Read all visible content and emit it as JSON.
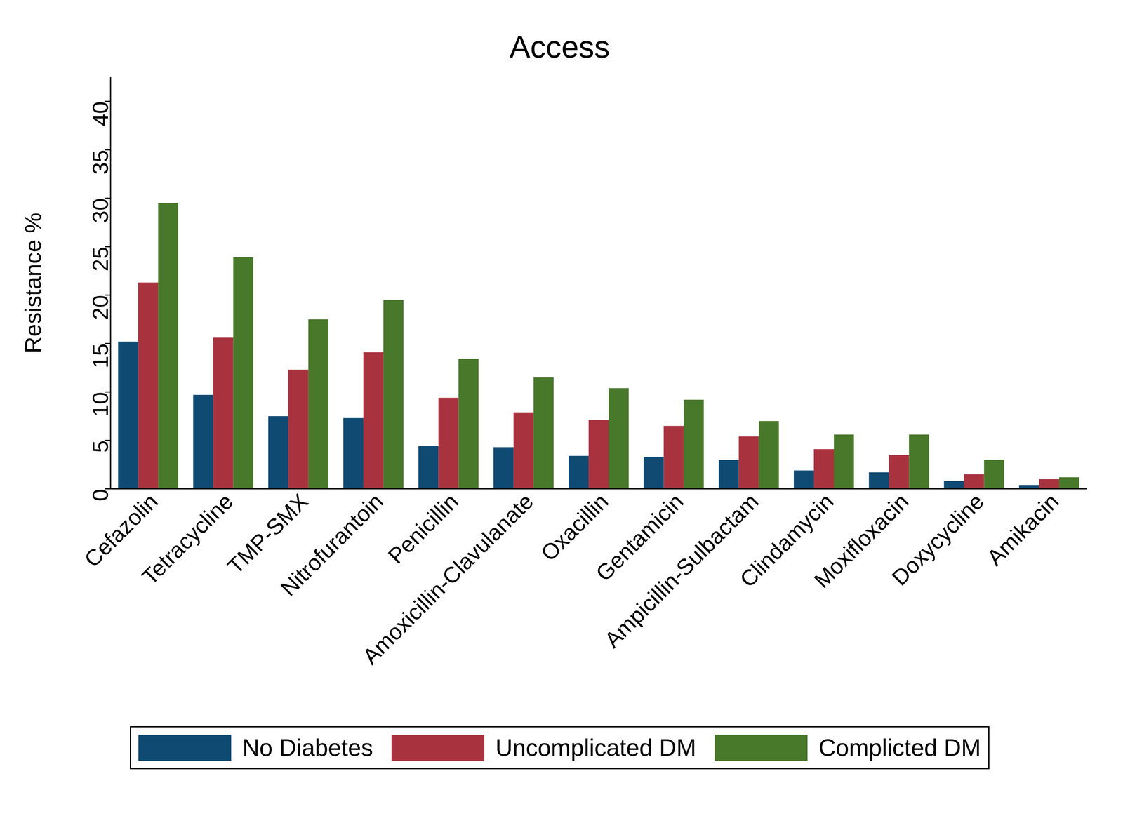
{
  "chart_data": {
    "type": "bar",
    "title": "Access",
    "y_label": "Resistance %",
    "categories": [
      "Cefazolin",
      "Tetracycline",
      "TMP-SMX",
      "Nitrofurantoin",
      "Penicillin",
      "Amoxicillin-Clavulanate",
      "Oxacillin",
      "Gentamicin",
      "Ampicillin-Sulbactam",
      "Clindamycin",
      "Moxifloxacin",
      "Doxycycline",
      "Amikacin"
    ],
    "series": [
      {
        "name": "No Diabetes",
        "color": "#0f4a73",
        "values": [
          15.2,
          9.7,
          7.5,
          7.3,
          4.4,
          4.3,
          3.4,
          3.3,
          3.0,
          1.9,
          1.7,
          0.8,
          0.4
        ]
      },
      {
        "name": "Uncomplicated DM",
        "color": "#a8333f",
        "values": [
          21.3,
          15.6,
          12.3,
          14.1,
          9.4,
          7.9,
          7.1,
          6.5,
          5.4,
          4.1,
          3.5,
          1.5,
          1.0
        ]
      },
      {
        "name": "Complicted DM",
        "color": "#48782a",
        "values": [
          29.5,
          23.9,
          17.5,
          19.5,
          13.4,
          11.5,
          10.4,
          9.2,
          7.0,
          5.6,
          5.6,
          3.0,
          1.2
        ]
      }
    ],
    "ylim": [
      0,
      42.5
    ],
    "yticks": [
      0,
      5,
      10,
      15,
      20,
      25,
      30,
      35,
      40
    ],
    "grid": false,
    "legend": "bottom"
  }
}
